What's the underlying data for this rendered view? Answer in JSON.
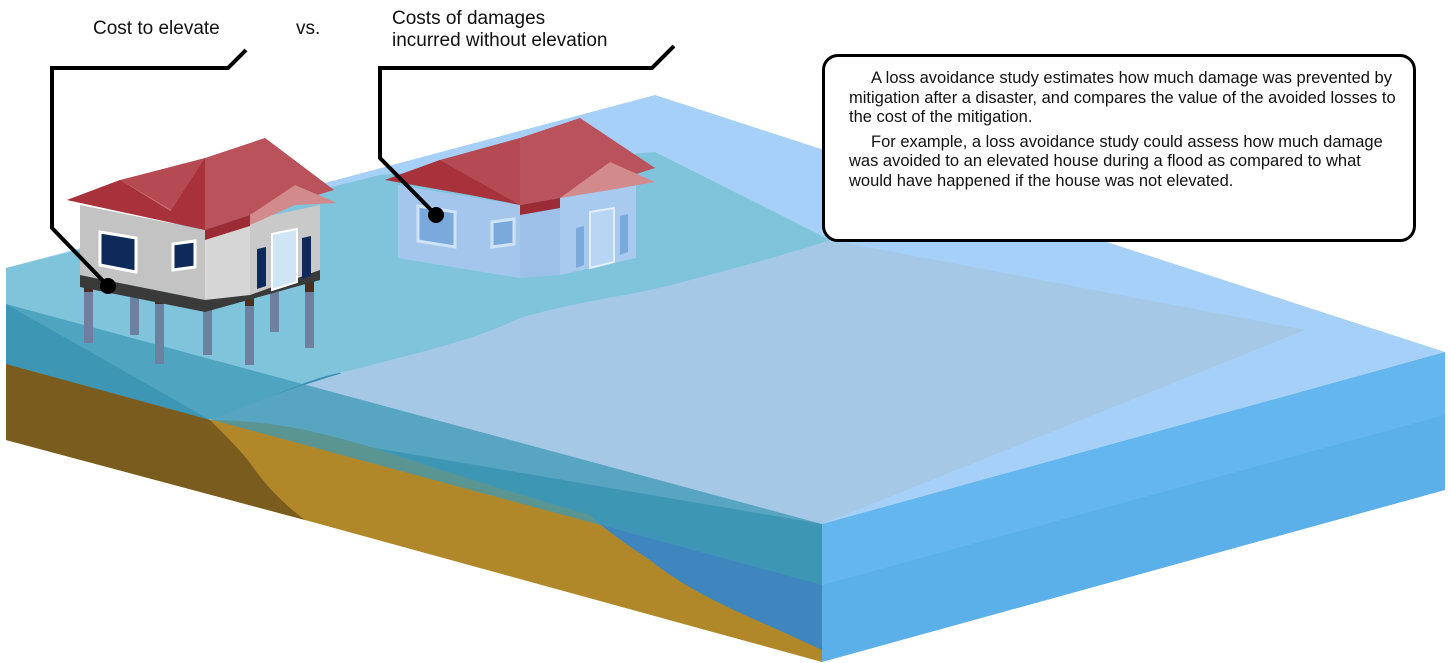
{
  "labels": {
    "cost_to_elevate": "Cost to elevate",
    "versus": "vs.",
    "damages_line1": "Costs of damages",
    "damages_line2": "incurred without elevation"
  },
  "info_box": {
    "paragraph1": "A loss avoidance study estimates how much damage was prevented by mitigation after a disaster, and compares the value of the avoided losses to the cost of the mitigation.",
    "paragraph2": "For example, a loss avoidance study could assess how much damage was avoided to an elevated house during a flood as compared to what would have happened if the house was not elevated."
  },
  "colors": {
    "water_surface": "#a6d0f7",
    "water_side": "#5bb0ea",
    "shallow_water": "#80c4dc",
    "sediment": "#b0882a",
    "sediment_dark": "#7a5c1e",
    "roof": "#a8323c",
    "wall": "#c8c8c8",
    "window": "#0e2a5a"
  }
}
